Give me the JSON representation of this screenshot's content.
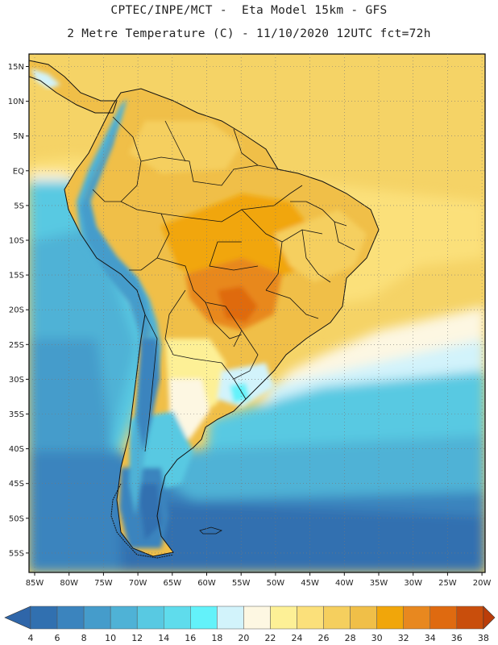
{
  "header": {
    "line1": "CPTEC/INPE/MCT -  Eta Model 15km - GFS",
    "line2": "2 Metre Temperature (C) - 11/10/2020 12UTC fct=72h"
  },
  "map": {
    "lat_labels": [
      "15N",
      "10N",
      "5N",
      "EQ",
      "5S",
      "10S",
      "15S",
      "20S",
      "25S",
      "30S",
      "35S",
      "40S",
      "45S",
      "50S",
      "55S"
    ],
    "lon_labels": [
      "85W",
      "80W",
      "75W",
      "70W",
      "65W",
      "60W",
      "55W",
      "50W",
      "45W",
      "40W",
      "35W",
      "30W",
      "25W",
      "20W"
    ]
  },
  "colorbar": {
    "labels": [
      "4",
      "6",
      "8",
      "10",
      "12",
      "14",
      "16",
      "18",
      "20",
      "22",
      "24",
      "26",
      "28",
      "30",
      "32",
      "34",
      "36",
      "38"
    ],
    "low_color": "#2f66a9",
    "high_color": "#bb3d09",
    "colors": [
      "#3170b0",
      "#3b84be",
      "#459ccb",
      "#4fb2d6",
      "#58c9e2",
      "#5fdcec",
      "#63f2fa",
      "#d2f3fb",
      "#fdf7e2",
      "#fdf096",
      "#fbe07a",
      "#f5cf5e",
      "#f0bf48",
      "#f1a60a",
      "#e8881f",
      "#df6a10",
      "#c94e0c"
    ]
  }
}
